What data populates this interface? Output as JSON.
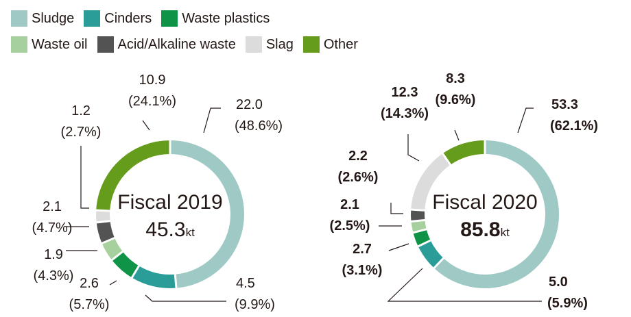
{
  "chart_data": [
    {
      "type": "pie",
      "title": "Fiscal 2019",
      "total": "45.3",
      "unit": "kt",
      "bold": false,
      "categories": [
        "Sludge",
        "Cinders",
        "Waste plastics",
        "Waste oil",
        "Acid/Alkaline waste",
        "Slag",
        "Other"
      ],
      "values": [
        22.0,
        4.5,
        2.6,
        1.9,
        2.1,
        1.2,
        10.9
      ],
      "labels": [
        {
          "value": "22.0",
          "percent": "(48.6%)"
        },
        {
          "value": "4.5",
          "percent": "(9.9%)"
        },
        {
          "value": "2.6",
          "percent": "(5.7%)"
        },
        {
          "value": "1.9",
          "percent": "(4.3%)"
        },
        {
          "value": "2.1",
          "percent": "(4.7%)"
        },
        {
          "value": "1.2",
          "percent": "(2.7%)"
        },
        {
          "value": "10.9",
          "percent": "(24.1%)"
        }
      ]
    },
    {
      "type": "pie",
      "title": "Fiscal 2020",
      "total": "85.8",
      "unit": "kt",
      "bold": true,
      "categories": [
        "Sludge",
        "Cinders",
        "Waste plastics",
        "Waste oil",
        "Acid/Alkaline waste",
        "Slag",
        "Other"
      ],
      "values": [
        53.3,
        5.0,
        2.7,
        2.1,
        2.2,
        12.3,
        8.3
      ],
      "labels": [
        {
          "value": "53.3",
          "percent": "(62.1%)"
        },
        {
          "value": "5.0",
          "percent": "(5.9%)"
        },
        {
          "value": "2.7",
          "percent": "(3.1%)"
        },
        {
          "value": "2.1",
          "percent": "(2.5%)"
        },
        {
          "value": "2.2",
          "percent": "(2.6%)"
        },
        {
          "value": "12.3",
          "percent": "(14.3%)"
        },
        {
          "value": "8.3",
          "percent": "(9.6%)"
        }
      ]
    }
  ],
  "legend": [
    {
      "label": "Sludge",
      "color": "#9fc9c5"
    },
    {
      "label": "Cinders",
      "color": "#2a9d98"
    },
    {
      "label": "Waste plastics",
      "color": "#0f9447"
    },
    {
      "label": "Waste oil",
      "color": "#a6d09d"
    },
    {
      "label": "Acid/Alkaline waste",
      "color": "#535353"
    },
    {
      "label": "Slag",
      "color": "#dcdcdc"
    },
    {
      "label": "Other",
      "color": "#669c1b"
    }
  ]
}
